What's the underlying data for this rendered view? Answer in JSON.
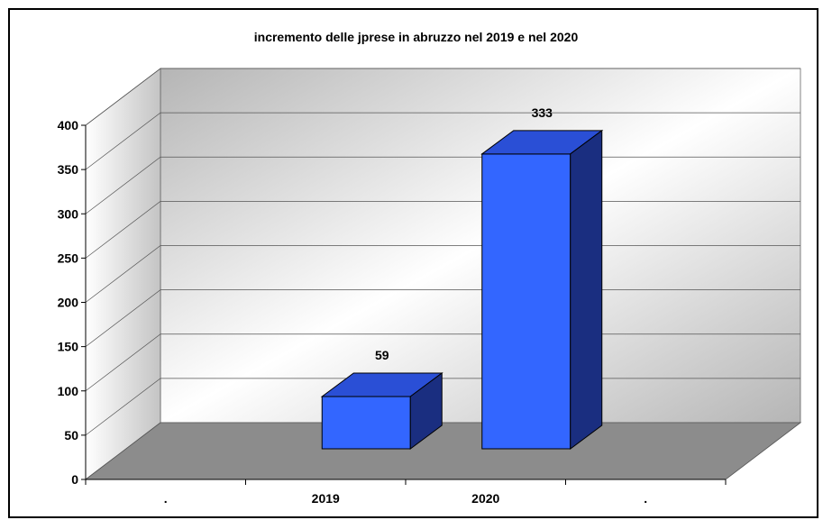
{
  "chart_data": {
    "type": "bar",
    "style": "3d-column",
    "title": "incremento delle jprese in abruzzo nel 2019 e nel 2020",
    "categories": [
      ".",
      "2019",
      "2020",
      "."
    ],
    "series": [
      {
        "values": [
          null,
          59,
          333,
          null
        ],
        "data_labels": [
          "",
          "59",
          "333",
          ""
        ]
      }
    ],
    "ylim": [
      0,
      400
    ],
    "yticks": [
      "0",
      "50",
      "100",
      "150",
      "200",
      "250",
      "300",
      "350",
      "400"
    ],
    "grid": true,
    "legend": "none",
    "colors": {
      "bar_front": "#3366ff",
      "bar_top": "#2a4fd6",
      "bar_side": "#1a2e80",
      "floor": "#8c8c8c",
      "wall_light": "#ffffff",
      "wall_dark": "#bdbdbd"
    }
  }
}
